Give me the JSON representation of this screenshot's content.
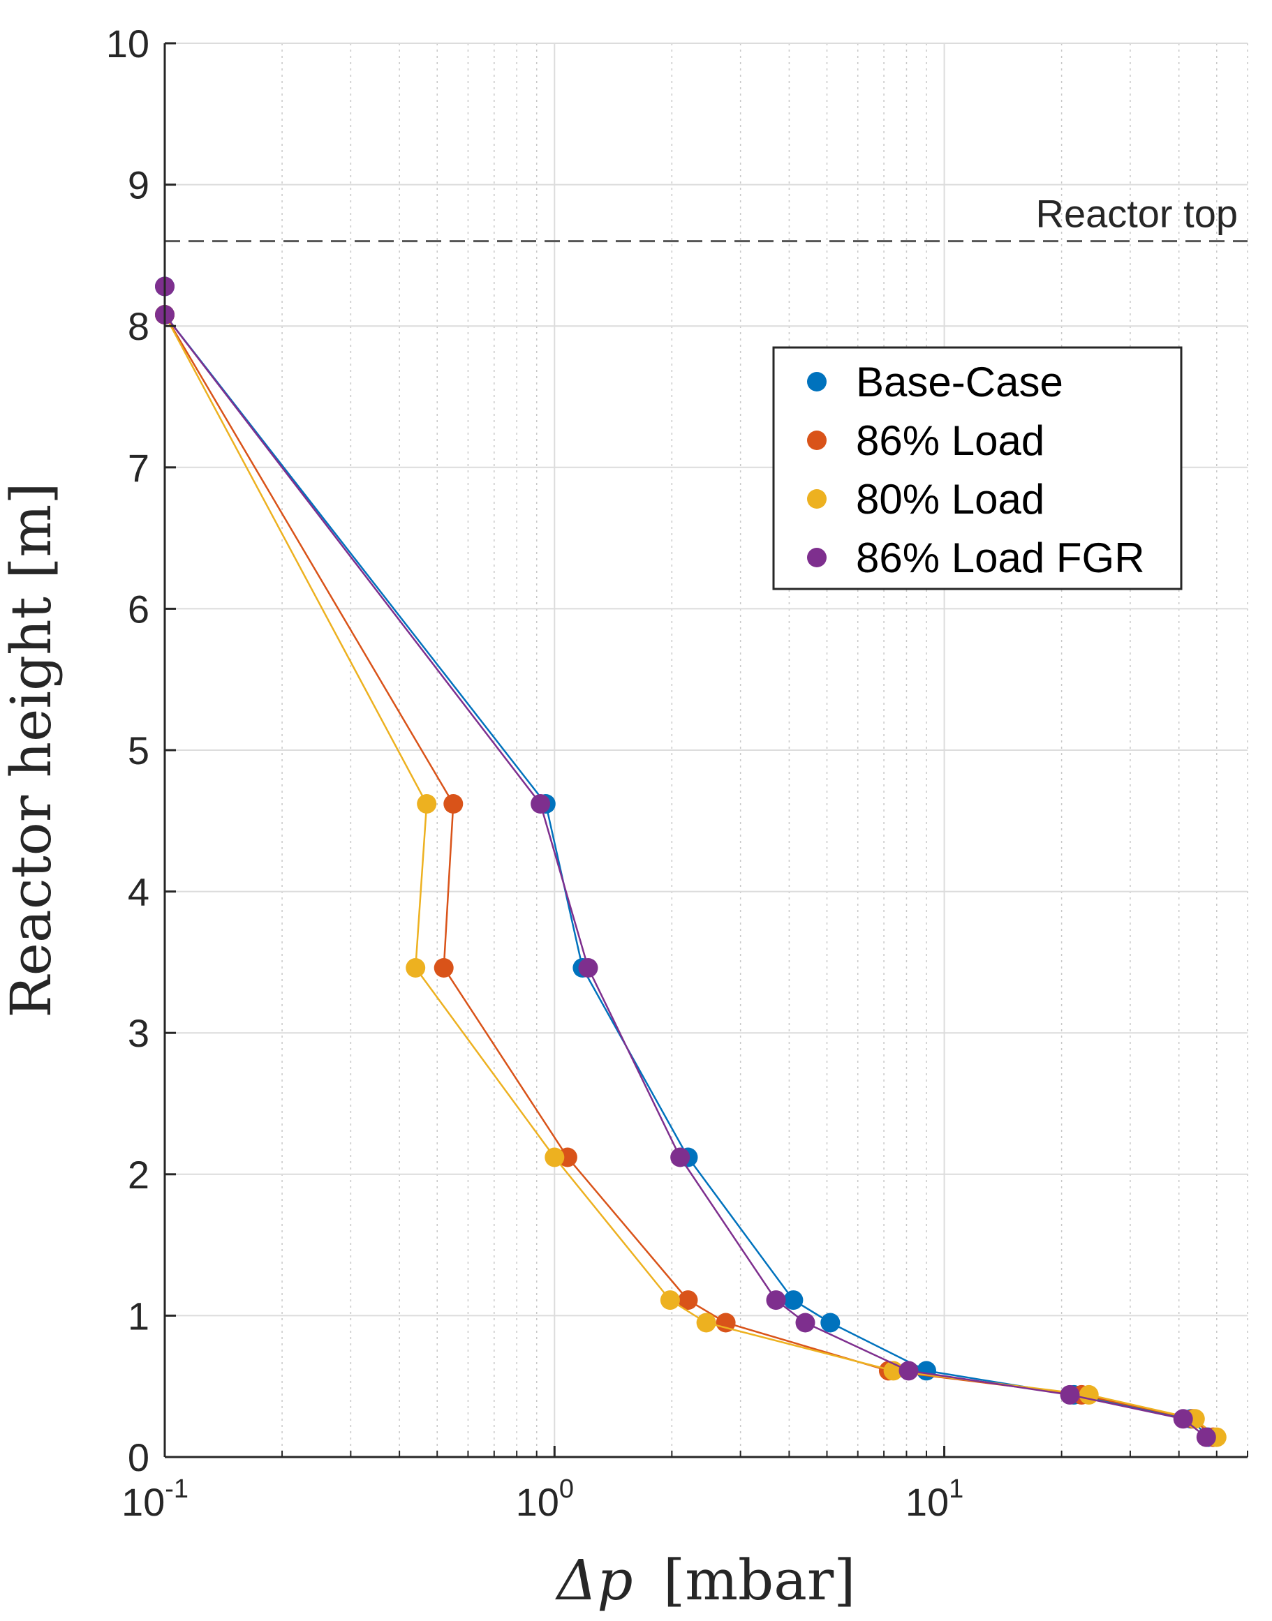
{
  "chart_data": {
    "type": "line",
    "title": "",
    "xlabel": "Δp [mbar]",
    "xlabel_symbol": "Δp",
    "xlabel_unit": "[mbar]",
    "ylabel": "Reactor height [m]",
    "xscale": "log",
    "xlim": [
      0.1,
      60
    ],
    "ylim": [
      0,
      10
    ],
    "grid": true,
    "legend_position": "top-right",
    "x_ticks": [
      {
        "base": "10",
        "exp": "-1",
        "value": 0.1
      },
      {
        "base": "10",
        "exp": "0",
        "value": 1
      },
      {
        "base": "10",
        "exp": "1",
        "value": 10
      }
    ],
    "y_ticks": [
      "0",
      "1",
      "2",
      "3",
      "4",
      "5",
      "6",
      "7",
      "8",
      "9",
      "10"
    ],
    "reference_line": {
      "y": 8.6,
      "label": "Reactor top",
      "style": "dashed"
    },
    "series": [
      {
        "name": "Base-Case",
        "color": "#0072BD",
        "points": [
          [
            0.1,
            8.28
          ],
          [
            0.1,
            8.08
          ],
          [
            0.95,
            4.62
          ],
          [
            1.18,
            3.46
          ],
          [
            2.2,
            2.12
          ],
          [
            4.1,
            1.11
          ],
          [
            5.1,
            0.95
          ],
          [
            9.0,
            0.61
          ],
          [
            21.5,
            0.44
          ],
          [
            43.0,
            0.27
          ],
          [
            47.5,
            0.14
          ]
        ]
      },
      {
        "name": "86% Load",
        "color": "#D95319",
        "points": [
          [
            0.1,
            8.08
          ],
          [
            0.55,
            4.62
          ],
          [
            0.52,
            3.46
          ],
          [
            1.08,
            2.12
          ],
          [
            2.2,
            1.11
          ],
          [
            2.75,
            0.95
          ],
          [
            7.2,
            0.61
          ],
          [
            22.5,
            0.44
          ],
          [
            43.5,
            0.27
          ],
          [
            49.0,
            0.14
          ]
        ]
      },
      {
        "name": "80% Load",
        "color": "#EDB120",
        "points": [
          [
            0.1,
            8.08
          ],
          [
            0.47,
            4.62
          ],
          [
            0.44,
            3.46
          ],
          [
            1.0,
            2.12
          ],
          [
            1.98,
            1.11
          ],
          [
            2.45,
            0.95
          ],
          [
            7.4,
            0.61
          ],
          [
            23.5,
            0.44
          ],
          [
            44.0,
            0.27
          ],
          [
            50.0,
            0.14
          ]
        ]
      },
      {
        "name": "86% Load FGR",
        "color": "#7E2F8E",
        "points": [
          [
            0.1,
            8.28
          ],
          [
            0.1,
            8.08
          ],
          [
            0.92,
            4.62
          ],
          [
            1.22,
            3.46
          ],
          [
            2.1,
            2.12
          ],
          [
            3.7,
            1.11
          ],
          [
            4.4,
            0.95
          ],
          [
            8.1,
            0.61
          ],
          [
            21.0,
            0.44
          ],
          [
            41.0,
            0.27
          ],
          [
            47.0,
            0.14
          ]
        ]
      }
    ]
  }
}
